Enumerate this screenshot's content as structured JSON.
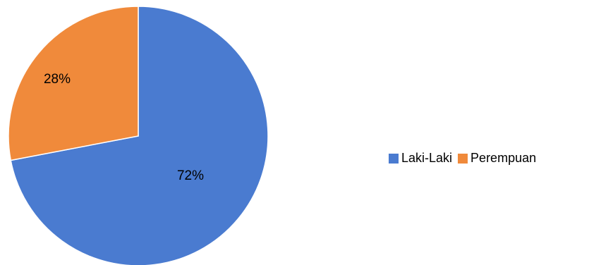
{
  "chart_data": {
    "type": "pie",
    "categories": [
      "Laki-Laki",
      "Perempuan"
    ],
    "values": [
      72,
      28
    ],
    "data_labels": [
      "72%",
      "28%"
    ],
    "colors": [
      "#4a7bd0",
      "#f08a3b"
    ],
    "title": "",
    "legend_position": "right",
    "start_angle": "12 o'clock",
    "direction": "clockwise"
  }
}
